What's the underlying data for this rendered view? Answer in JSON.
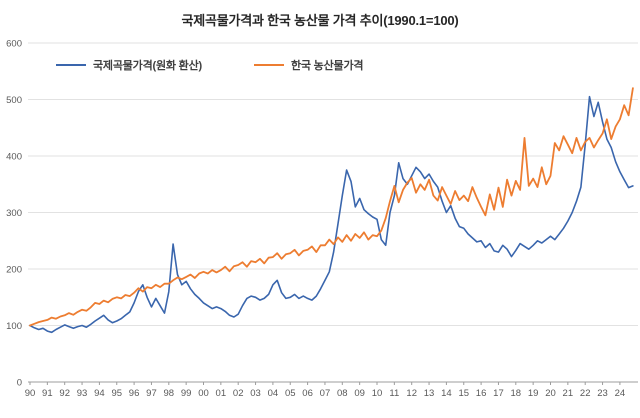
{
  "chart_data": {
    "type": "line",
    "title": "국제곡물가격과 한국 농산물 가격 추이(1990.1=100)",
    "subtitle": "",
    "xlabel": "",
    "ylabel": "",
    "grid": "horizontal",
    "legend_position": "inside-top-left",
    "xlim": [
      1990,
      2025
    ],
    "ylim": [
      0,
      600
    ],
    "y_ticks": [
      0,
      100,
      200,
      300,
      400,
      500,
      600
    ],
    "x_tick_labels": [
      "90",
      "91",
      "92",
      "93",
      "94",
      "95",
      "96",
      "97",
      "98",
      "99",
      "00",
      "01",
      "02",
      "03",
      "04",
      "05",
      "06",
      "07",
      "08",
      "09",
      "10",
      "11",
      "12",
      "13",
      "14",
      "15",
      "16",
      "17",
      "18",
      "19",
      "20",
      "21",
      "22",
      "23",
      "24"
    ],
    "x_start": 1990,
    "x_step": 0.25,
    "series": [
      {
        "name": "국제곡물가격(원화 환산)",
        "color": "#3A66AD",
        "values": [
          100,
          96,
          93,
          95,
          90,
          88,
          93,
          97,
          101,
          98,
          95,
          98,
          100,
          97,
          102,
          108,
          113,
          118,
          110,
          105,
          108,
          112,
          118,
          124,
          140,
          160,
          172,
          150,
          133,
          148,
          135,
          122,
          160,
          244,
          190,
          172,
          178,
          165,
          155,
          148,
          140,
          135,
          130,
          133,
          130,
          125,
          118,
          115,
          120,
          135,
          148,
          152,
          150,
          145,
          148,
          155,
          172,
          180,
          158,
          148,
          150,
          155,
          148,
          152,
          148,
          145,
          152,
          165,
          180,
          195,
          230,
          280,
          330,
          375,
          355,
          310,
          325,
          305,
          298,
          292,
          288,
          252,
          242,
          300,
          330,
          388,
          360,
          350,
          365,
          380,
          372,
          360,
          368,
          355,
          345,
          320,
          300,
          312,
          290,
          275,
          272,
          262,
          255,
          248,
          250,
          238,
          245,
          232,
          230,
          242,
          235,
          222,
          233,
          245,
          240,
          235,
          242,
          250,
          246,
          252,
          258,
          252,
          262,
          272,
          285,
          300,
          320,
          345,
          420,
          505,
          470,
          495,
          460,
          430,
          415,
          390,
          372,
          358,
          344,
          347
        ]
      },
      {
        "name": "한국 농산물가격",
        "color": "#ED7D31",
        "values": [
          100,
          103,
          106,
          108,
          110,
          114,
          112,
          116,
          118,
          122,
          119,
          124,
          128,
          126,
          132,
          140,
          138,
          144,
          141,
          147,
          150,
          148,
          154,
          152,
          158,
          166,
          160,
          168,
          166,
          172,
          168,
          174,
          174,
          180,
          185,
          182,
          186,
          190,
          184,
          192,
          195,
          192,
          198,
          194,
          198,
          204,
          196,
          205,
          207,
          212,
          204,
          214,
          212,
          218,
          210,
          220,
          221,
          228,
          218,
          226,
          228,
          234,
          224,
          232,
          234,
          240,
          230,
          242,
          242,
          252,
          244,
          256,
          248,
          260,
          250,
          262,
          255,
          265,
          252,
          260,
          258,
          268,
          290,
          320,
          347,
          318,
          340,
          353,
          361,
          335,
          350,
          340,
          358,
          330,
          321,
          345,
          330,
          315,
          338,
          322,
          330,
          320,
          345,
          326,
          310,
          295,
          332,
          305,
          344,
          310,
          358,
          330,
          356,
          340,
          432,
          347,
          360,
          345,
          380,
          350,
          365,
          423,
          410,
          435,
          420,
          405,
          432,
          410,
          425,
          432,
          415,
          428,
          440,
          465,
          430,
          452,
          465,
          490,
          472,
          520
        ]
      }
    ],
    "axis_text_color": "#595959",
    "gridline_color": "#e2e2e2",
    "axis_line_color": "#9c9c9c"
  }
}
